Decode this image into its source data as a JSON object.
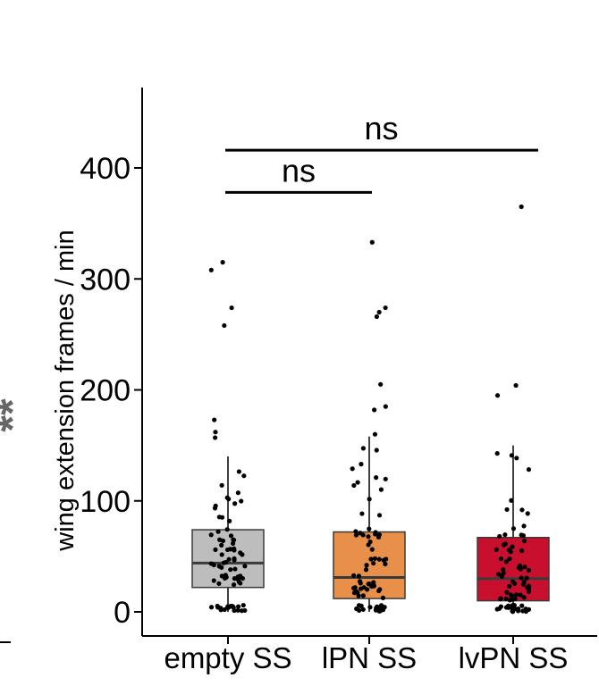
{
  "chart_data": {
    "type": "boxplot",
    "title": "",
    "xlabel": "",
    "ylabel": "wing extension frames / min",
    "ylim": [
      -20,
      475
    ],
    "yticks": [
      0,
      100,
      200,
      300,
      400
    ],
    "categories": [
      "empty SS",
      "lPN SS",
      "lvPN SS"
    ],
    "boxes": [
      {
        "name": "empty SS",
        "color": "#bdbdbd",
        "q1": 22,
        "median": 44,
        "q3": 74,
        "whisker_low": 0,
        "whisker_high": 140
      },
      {
        "name": "lPN SS",
        "color": "#e8904a",
        "q1": 12,
        "median": 31,
        "q3": 72,
        "whisker_low": 0,
        "whisker_high": 158
      },
      {
        "name": "lvPN SS",
        "color": "#c8102e",
        "q1": 10,
        "median": 30,
        "q3": 67,
        "whisker_low": 0,
        "whisker_high": 150
      }
    ],
    "outliers": [
      [
        315,
        308,
        274,
        258,
        173,
        162,
        157
      ],
      [
        333,
        274,
        270,
        266,
        205,
        185,
        182,
        160
      ],
      [
        365,
        204,
        195
      ]
    ],
    "significance": [
      {
        "label": "ns",
        "from": "empty SS",
        "to": "lPN SS",
        "y": 378
      },
      {
        "label": "ns",
        "from": "empty SS",
        "to": "lvPN SS",
        "y": 416
      }
    ],
    "side_annotation": "**"
  },
  "colors": {
    "axis": "#000000",
    "box_border": "#3a3a3a",
    "point": "#000000",
    "annotation": "#666666"
  }
}
